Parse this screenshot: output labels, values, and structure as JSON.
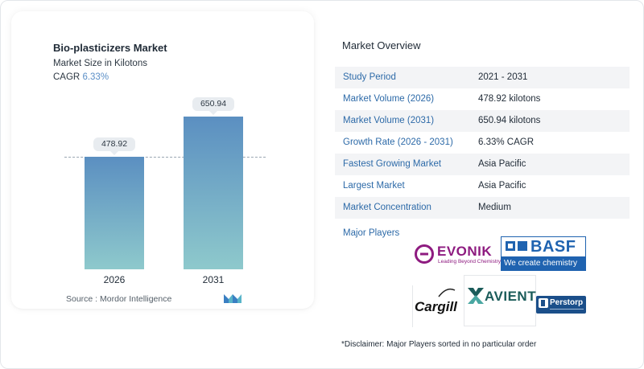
{
  "chart": {
    "title": "Bio-plasticizers Market",
    "subtitle": "Market Size in Kilotons",
    "cagr_label": "CAGR",
    "cagr_value": "6.33%",
    "source": "Source :  Mordor Intelligence"
  },
  "chart_data": {
    "type": "bar",
    "categories": [
      "2026",
      "2031"
    ],
    "values": [
      478.92,
      650.94
    ],
    "value_labels": [
      "478.92",
      "650.94"
    ],
    "title": "Bio-plasticizers Market",
    "ylabel": "Market Size in Kilotons"
  },
  "overview": {
    "title": "Market Overview",
    "rows": [
      {
        "label": "Study Period",
        "value": "2021 - 2031"
      },
      {
        "label": "Market Volume (2026)",
        "value": "478.92 kilotons"
      },
      {
        "label": "Market Volume (2031)",
        "value": "650.94 kilotons"
      },
      {
        "label": "Growth Rate (2026 - 2031)",
        "value": "6.33% CAGR"
      },
      {
        "label": "Fastest Growing Market",
        "value": "Asia Pacific"
      },
      {
        "label": "Largest Market",
        "value": "Asia Pacific"
      },
      {
        "label": "Market Concentration",
        "value": "Medium"
      }
    ]
  },
  "players": {
    "title": "Major Players",
    "evonik": {
      "name": "EVONIK",
      "tagline": "Leading Beyond Chemistry"
    },
    "basf": {
      "name": "BASF",
      "tagline": "We create chemistry"
    },
    "cargill": {
      "name": "Cargill"
    },
    "avient": {
      "name": "AVIENT"
    },
    "perstorp": {
      "name": "Perstorp"
    }
  },
  "disclaimer": "*Disclaimer: Major Players sorted in no particular order",
  "colors": {
    "bar_top": "#5b8fc1",
    "bar_bottom": "#8ec9cc",
    "accent_text": "#2d6aa8",
    "evonik": "#8e1b80",
    "basf": "#1f63b0",
    "avient": "#1b5c5a"
  }
}
